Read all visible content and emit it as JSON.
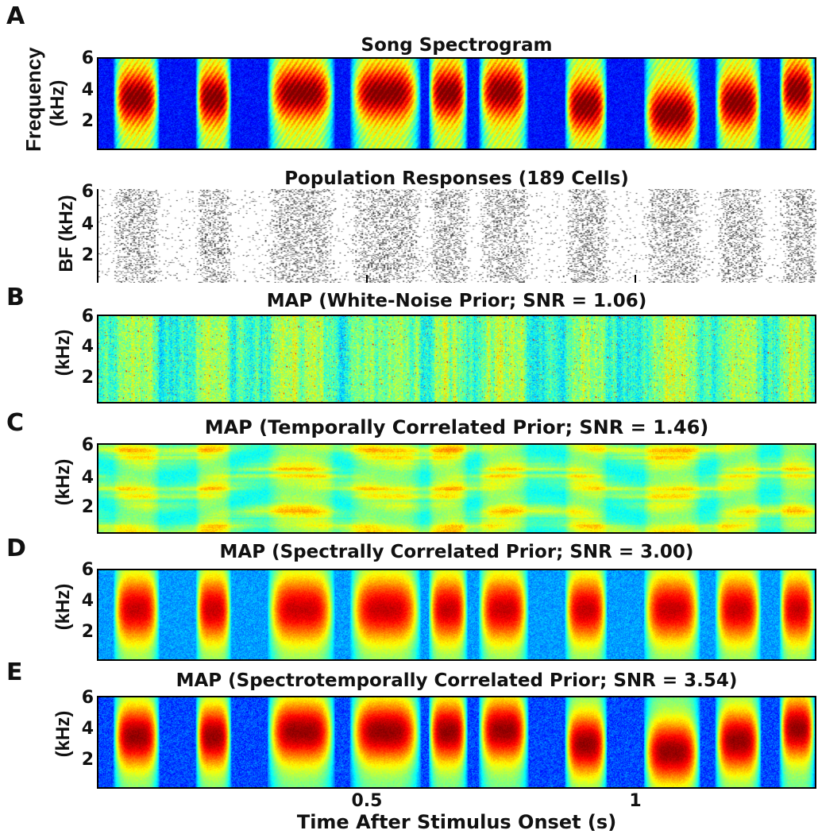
{
  "chart_data": [
    {
      "panel": "A",
      "type": "heatmap",
      "title": "Song Spectrogram",
      "ylabel_lines": [
        "Frequency",
        "(kHz)"
      ],
      "yticks": [
        "6",
        "4",
        "2"
      ],
      "ylim": [
        0.2,
        6
      ],
      "style": "spectrogram",
      "syllable_peaks_kHz": [
        3.5,
        3.5,
        3.8,
        3.8,
        3.8,
        3.9,
        3.0,
        2.5,
        3.2,
        4.0
      ]
    },
    {
      "panel": "A",
      "type": "scatter",
      "title": "Population Responses (189 Cells)",
      "ylabel_lines": [
        "BF (kHz)"
      ],
      "yticks": [
        "6",
        "4",
        "2"
      ],
      "ylim": [
        0.2,
        6
      ],
      "n_cells": 189,
      "style": "raster"
    },
    {
      "panel": "B",
      "type": "heatmap",
      "title": "MAP (White-Noise Prior; SNR = 1.06)",
      "ylabel_lines": [
        "(kHz)"
      ],
      "yticks": [
        "6",
        "4",
        "2"
      ],
      "ylim": [
        0.2,
        6
      ],
      "snr": 1.06,
      "style": "white-noise"
    },
    {
      "panel": "C",
      "type": "heatmap",
      "title": "MAP (Temporally Correlated Prior; SNR = 1.46)",
      "ylabel_lines": [
        "(kHz)"
      ],
      "yticks": [
        "6",
        "4",
        "2"
      ],
      "ylim": [
        0.2,
        6
      ],
      "snr": 1.46,
      "style": "temporal"
    },
    {
      "panel": "D",
      "type": "heatmap",
      "title": "MAP (Spectrally Correlated Prior; SNR = 3.00)",
      "ylabel_lines": [
        "(kHz)"
      ],
      "yticks": [
        "6",
        "4",
        "2"
      ],
      "ylim": [
        0.2,
        6
      ],
      "snr": 3.0,
      "style": "spectral"
    },
    {
      "panel": "E",
      "type": "heatmap",
      "title": "MAP (Spectrotemporally Correlated Prior; SNR = 3.54)",
      "ylabel_lines": [
        "(kHz)"
      ],
      "yticks": [
        "6",
        "4",
        "2"
      ],
      "ylim": [
        0.2,
        6
      ],
      "snr": 3.54,
      "style": "spectrotemporal"
    }
  ],
  "shared_x_axis": {
    "xlabel": "Time After Stimulus Onset (s)",
    "xticks": [
      "0.5",
      "1"
    ],
    "xlim": [
      0.0,
      1.33
    ]
  },
  "panel_letters": [
    "A",
    "B",
    "C",
    "D",
    "E"
  ]
}
